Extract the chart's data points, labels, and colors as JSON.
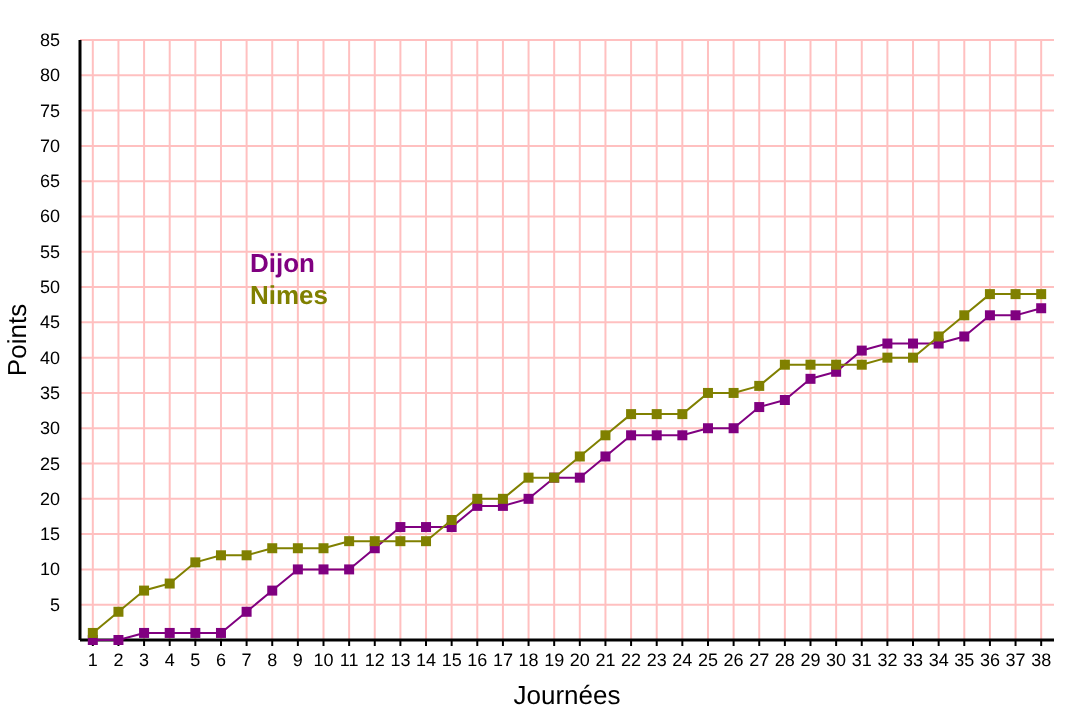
{
  "chart_data": {
    "type": "line",
    "xlabel": "Journées",
    "ylabel": "Points",
    "x": [
      1,
      2,
      3,
      4,
      5,
      6,
      7,
      8,
      9,
      10,
      11,
      12,
      13,
      14,
      15,
      16,
      17,
      18,
      19,
      20,
      21,
      22,
      23,
      24,
      25,
      26,
      27,
      28,
      29,
      30,
      31,
      32,
      33,
      34,
      35,
      36,
      37,
      38
    ],
    "series": [
      {
        "name": "Dijon",
        "color": "#800080",
        "values": [
          0,
          0,
          1,
          1,
          1,
          1,
          4,
          7,
          10,
          10,
          10,
          13,
          16,
          16,
          16,
          19,
          19,
          20,
          23,
          23,
          26,
          29,
          29,
          29,
          30,
          30,
          33,
          34,
          37,
          38,
          41,
          42,
          42,
          42,
          43,
          46,
          46,
          47
        ]
      },
      {
        "name": "Nimes",
        "color": "#808000",
        "values": [
          1,
          4,
          7,
          8,
          11,
          12,
          12,
          13,
          13,
          13,
          14,
          14,
          14,
          14,
          17,
          20,
          20,
          23,
          23,
          26,
          29,
          32,
          32,
          32,
          35,
          35,
          36,
          39,
          39,
          39,
          39,
          40,
          40,
          43,
          46,
          49,
          49,
          49
        ]
      }
    ],
    "xlim": [
      0.5,
      38.5
    ],
    "xticks": [
      1,
      2,
      3,
      4,
      5,
      6,
      7,
      8,
      9,
      10,
      11,
      12,
      13,
      14,
      15,
      16,
      17,
      18,
      19,
      20,
      21,
      22,
      23,
      24,
      25,
      26,
      27,
      28,
      29,
      30,
      31,
      32,
      33,
      34,
      35,
      36,
      37,
      38
    ],
    "ylim": [
      0,
      85
    ],
    "yticks": [
      5,
      10,
      15,
      20,
      25,
      30,
      35,
      40,
      45,
      50,
      55,
      60,
      65,
      70,
      75,
      80,
      85
    ],
    "grid": true,
    "legend": "left",
    "marker": "square",
    "line_style": "solid"
  }
}
